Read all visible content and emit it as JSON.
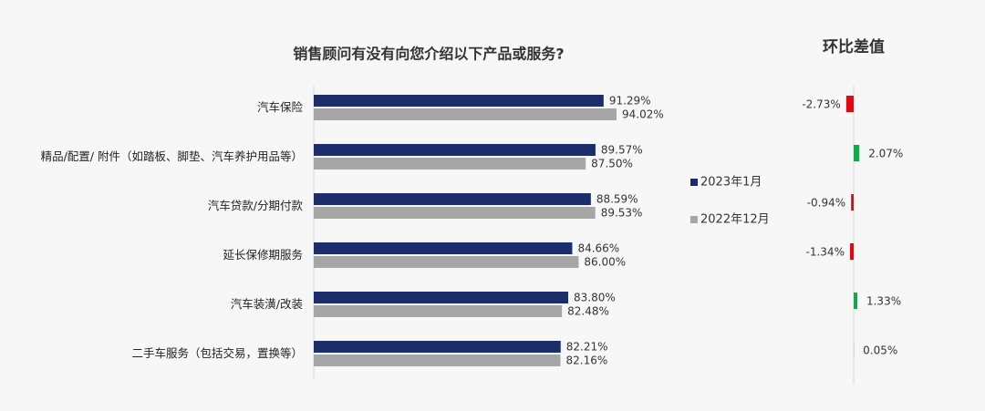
{
  "chart_data": [
    {
      "type": "bar",
      "orientation": "horizontal",
      "title": "销售顾问有没有向您介绍以下产品或服务?",
      "categories": [
        "汽车保险",
        "精品/配置/ 附件（如踏板、脚垫、汽车养护用品等）",
        "汽车贷款/分期付款",
        "延长保修期服务",
        "汽车装潢/改装",
        "二手车服务（包括交易，置换等）"
      ],
      "series": [
        {
          "name": "2023年1月",
          "color": "#1b2d6a",
          "values": [
            91.29,
            89.57,
            88.59,
            84.66,
            83.8,
            82.21
          ],
          "value_labels": [
            "91.29%",
            "89.57%",
            "88.59%",
            "84.66%",
            "83.80%",
            "82.21%"
          ]
        },
        {
          "name": "2022年12月",
          "color": "#a6a6a6",
          "values": [
            94.02,
            87.5,
            89.53,
            86.0,
            82.48,
            82.16
          ],
          "value_labels": [
            "94.02%",
            "87.50%",
            "89.53%",
            "86.00%",
            "82.48%",
            "82.16%"
          ]
        }
      ],
      "xlim": [
        30,
        100
      ]
    },
    {
      "type": "bar",
      "orientation": "horizontal",
      "title": "环比差值",
      "values": [
        -2.73,
        2.07,
        -0.94,
        -1.34,
        1.33,
        0.05
      ],
      "value_labels": [
        "-2.73%",
        "2.07%",
        "-0.94%",
        "-1.34%",
        "1.33%",
        "0.05%"
      ],
      "positive_color": "#12a84b",
      "negative_color": "#e30613",
      "xlim": [
        -10,
        10
      ]
    }
  ]
}
